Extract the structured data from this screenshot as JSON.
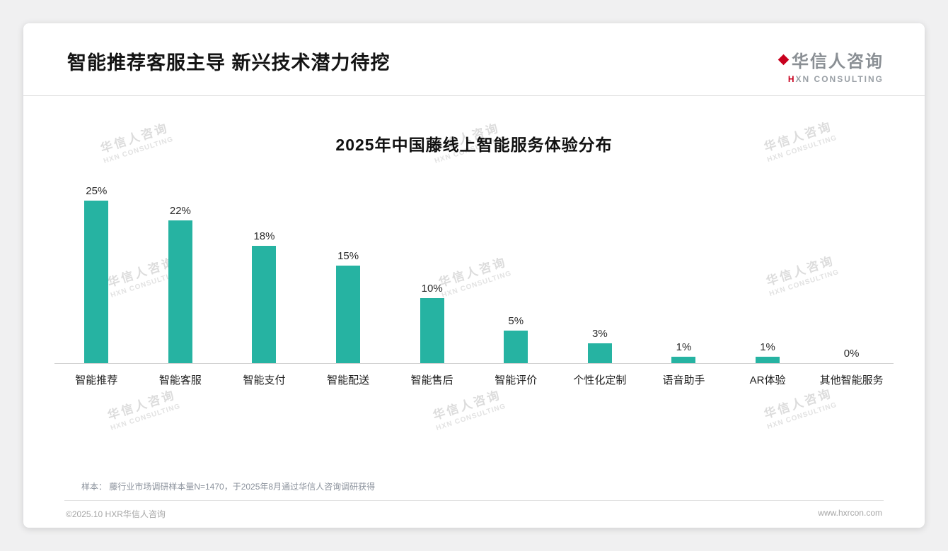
{
  "page": {
    "title": "智能推荐客服主导 新兴技术潜力待挖"
  },
  "logo": {
    "name": "华信人咨询",
    "subtitle": "HXN CONSULTING"
  },
  "watermark": {
    "line1": "华信人咨询",
    "line2": "HXN CONSULTING"
  },
  "chart_data": {
    "type": "bar",
    "title": "2025年中国藤线上智能服务体验分布",
    "categories": [
      "智能推荐",
      "智能客服",
      "智能支付",
      "智能配送",
      "智能售后",
      "智能评价",
      "个性化定制",
      "语音助手",
      "AR体验",
      "其他智能服务"
    ],
    "values": [
      25,
      22,
      18,
      15,
      10,
      5,
      3,
      1,
      1,
      0
    ],
    "value_suffix": "%",
    "bar_color": "#26b3a2",
    "ylim": [
      0,
      25
    ],
    "grid": false,
    "legend": "none",
    "value_labels": "above-bars"
  },
  "footnote": "样本： 藤行业市场调研样本量N=1470，于2025年8月通过华信人咨询调研获得",
  "footer": {
    "copyright": "©2025.10 HXR华信人咨询",
    "website": "www.hxrcon.com"
  },
  "colors": {
    "accent_red": "#c8001e",
    "bar_teal": "#26b3a2",
    "text_dark": "#141414",
    "text_gray": "#8b929c",
    "watermark_gray": "#dcdcdc"
  }
}
